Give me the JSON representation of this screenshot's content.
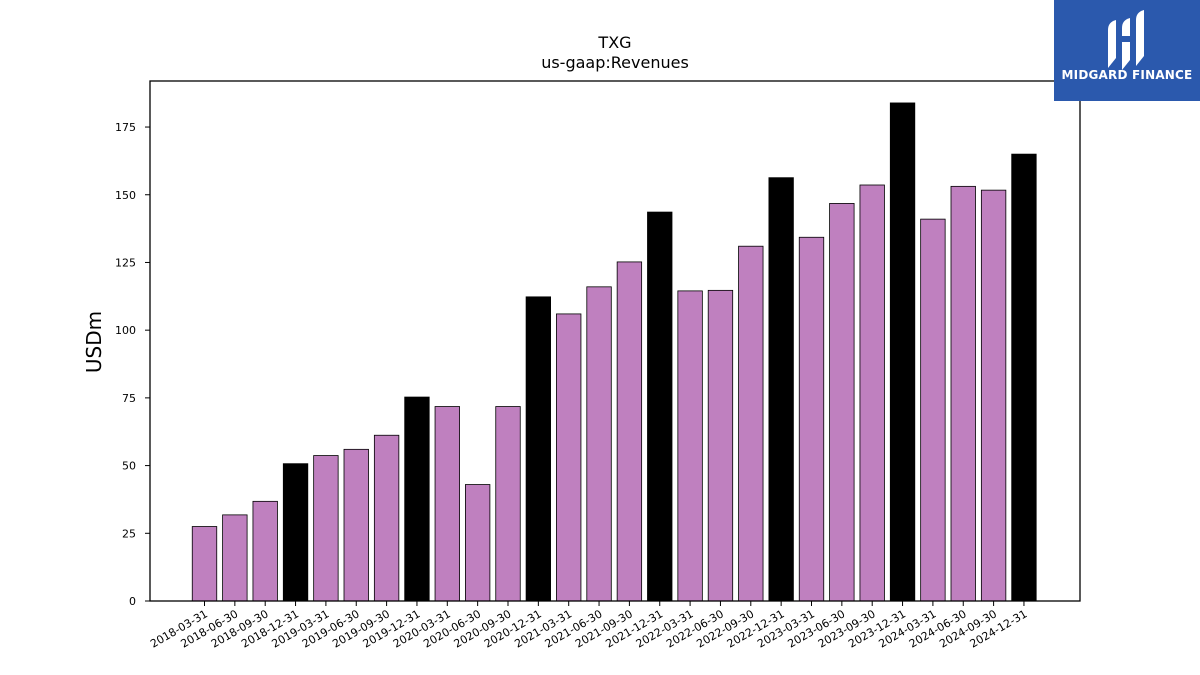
{
  "chart_data": {
    "type": "bar",
    "title": "TXG",
    "subtitle": "us-gaap:Revenues",
    "xlabel": "",
    "ylabel": "USDm",
    "ylim": [
      0,
      192
    ],
    "yticks": [
      0,
      25,
      50,
      75,
      100,
      125,
      150,
      175
    ],
    "grid": false,
    "colors": {
      "quarter": "#bf80bf",
      "year_end": "#000000",
      "edge": "#000000"
    },
    "categories": [
      "2018-03-31",
      "2018-06-30",
      "2018-09-30",
      "2018-12-31",
      "2019-03-31",
      "2019-06-30",
      "2019-09-30",
      "2019-12-31",
      "2020-03-31",
      "2020-06-30",
      "2020-09-30",
      "2020-12-31",
      "2021-03-31",
      "2021-06-30",
      "2021-09-30",
      "2021-12-31",
      "2022-03-31",
      "2022-06-30",
      "2022-09-30",
      "2022-12-31",
      "2023-03-31",
      "2023-06-30",
      "2023-09-30",
      "2023-12-31",
      "2024-03-31",
      "2024-06-30",
      "2024-09-30",
      "2024-12-31"
    ],
    "values": [
      27.5,
      31.8,
      36.8,
      50.7,
      53.7,
      56.0,
      61.2,
      75.3,
      71.8,
      43.0,
      71.8,
      112.3,
      106.0,
      116.0,
      125.2,
      143.6,
      114.5,
      114.7,
      131.0,
      156.3,
      134.3,
      146.8,
      153.6,
      183.9,
      141.0,
      153.1,
      151.7,
      165.0
    ],
    "year_end": [
      false,
      false,
      false,
      true,
      false,
      false,
      false,
      true,
      false,
      false,
      false,
      true,
      false,
      false,
      false,
      true,
      false,
      false,
      false,
      true,
      false,
      false,
      false,
      true,
      false,
      false,
      false,
      true
    ]
  },
  "logo": {
    "text": "MIDGARD FINANCE",
    "background": "#2b59ad"
  }
}
